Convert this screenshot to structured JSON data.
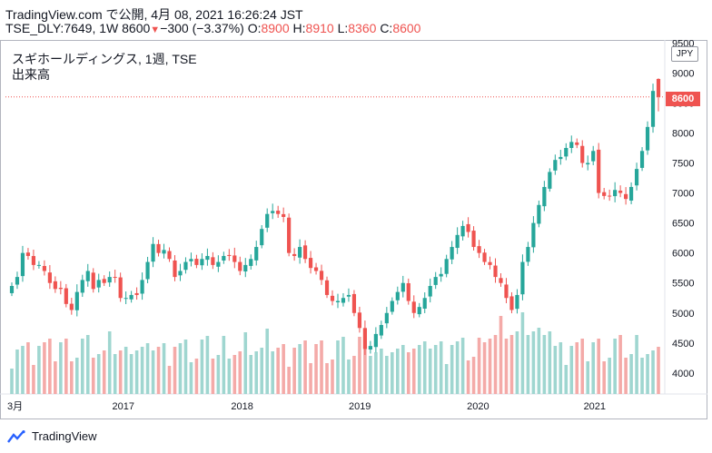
{
  "header": {
    "line1": "TradingView.com で公開, 4月 08, 2021 16:26:24 JST",
    "symbol": "TSE_DLY:7649, 1W 8600",
    "arrow": "▼",
    "change": "−300 (−3.37%)",
    "o_label": "O:",
    "o_value": "8900",
    "h_label": "H:",
    "h_value": "8910",
    "l_label": "L:",
    "l_value": "8360",
    "c_label": "C:",
    "c_value": "8600"
  },
  "legend": {
    "title": "スギホールディングス, 1週, TSE",
    "volume_label": "出来高"
  },
  "currency": "JPY",
  "last_price_label": "8600",
  "footer": {
    "brand": "TradingView"
  },
  "colors": {
    "up": "#26a69a",
    "down": "#ef5350",
    "up_vol": "#9fd6d0",
    "down_vol": "#f4aaa8",
    "axis_text": "#131722"
  },
  "chart_data": {
    "type": "candlestick",
    "interval": "weekly",
    "currency": "JPY",
    "y_ticks": [
      4000,
      4500,
      5000,
      5500,
      6000,
      6500,
      7000,
      7500,
      8000,
      8500,
      9000,
      9500
    ],
    "ylim": [
      3650,
      9550
    ],
    "x_labels": [
      "3月",
      "2017",
      "2018",
      "2019",
      "2020",
      "2021"
    ],
    "last_price": 8600,
    "last_candle": {
      "open": 8900,
      "high": 8910,
      "low": 8360,
      "close": 8600
    },
    "closes": [
      5450,
      5600,
      6000,
      5950,
      5800,
      5800,
      5700,
      5500,
      5400,
      5400,
      5150,
      5050,
      5350,
      5550,
      5700,
      5400,
      5550,
      5500,
      5600,
      5600,
      5250,
      5250,
      5300,
      5300,
      5550,
      5850,
      6150,
      6000,
      6050,
      5900,
      5600,
      5700,
      5850,
      5900,
      5800,
      5900,
      5950,
      5800,
      5850,
      5950,
      5950,
      5850,
      5700,
      5800,
      5900,
      6100,
      6400,
      6650,
      6700,
      6650,
      6600,
      6000,
      5950,
      6100,
      5900,
      5750,
      5700,
      5550,
      5300,
      5200,
      5200,
      5250,
      5300,
      5000,
      4750,
      4400,
      4450,
      4650,
      4800,
      5000,
      5200,
      5350,
      5500,
      5200,
      5000,
      5100,
      5250,
      5450,
      5600,
      5650,
      5900,
      6100,
      6300,
      6450,
      6350,
      6100,
      6000,
      5850,
      5800,
      5600,
      5500,
      5250,
      5050,
      5300,
      5850,
      6100,
      6500,
      6800,
      7100,
      7350,
      7550,
      7600,
      7750,
      7850,
      7800,
      7500,
      7500,
      7700,
      7000,
      6950,
      6950,
      7050,
      7000,
      6900,
      7100,
      7400,
      7700,
      8100,
      8700,
      8600
    ],
    "volume_scale": [
      0.3,
      0.6
    ]
  }
}
